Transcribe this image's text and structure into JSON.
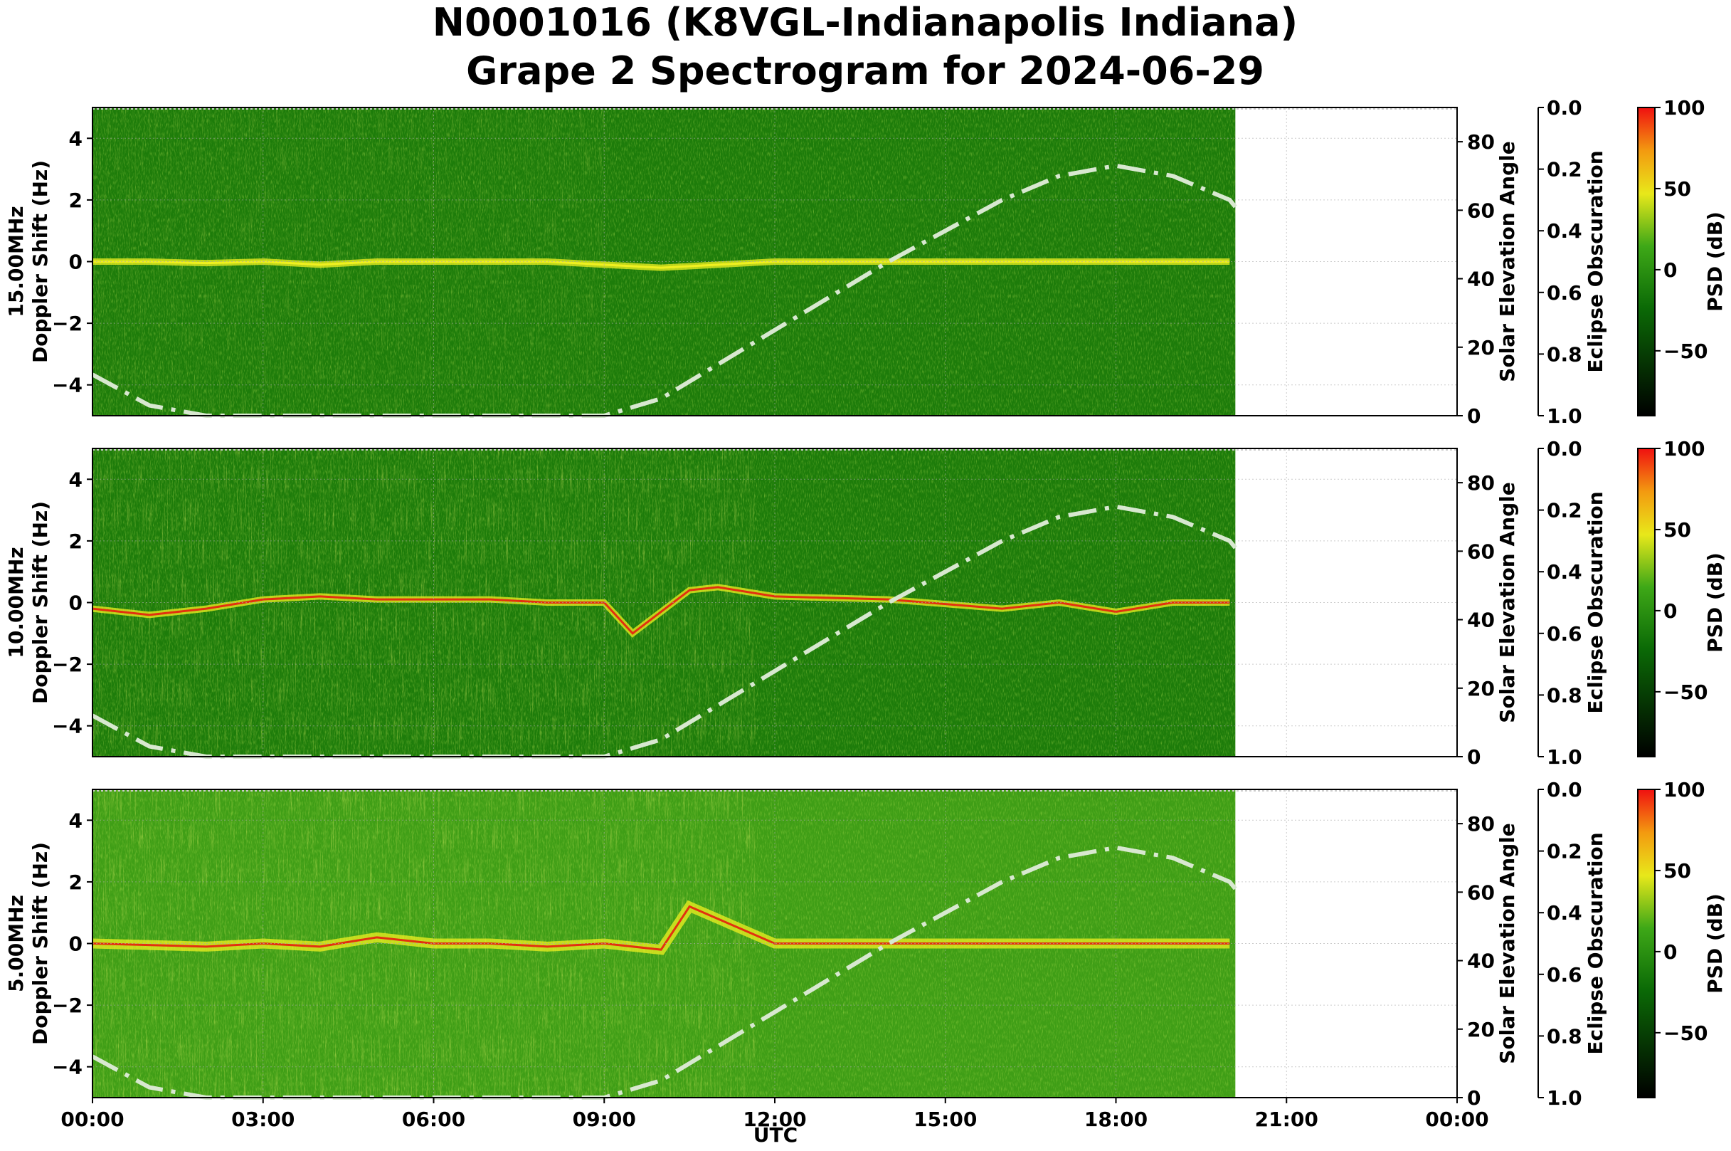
{
  "figure": {
    "title_line1": "N0001016 (K8VGL-Indianapolis Indiana)",
    "title_line2": "Grape 2 Spectrogram for 2024-06-29",
    "xlabel": "UTC"
  },
  "chart_data": [
    {
      "type": "heatmap",
      "band": "15.00MHz",
      "ylabel_line1": "15.00MHz",
      "ylabel_line2": "Doppler Shift (Hz)",
      "x_range_hours": [
        0,
        24
      ],
      "data_extent_hours": [
        0,
        20.1
      ],
      "ylim": [
        -5,
        5
      ],
      "yticks": [
        "−4",
        "−2",
        "0",
        "2",
        "4"
      ],
      "carrier_trace": [
        [
          0,
          0
        ],
        [
          1,
          0
        ],
        [
          2,
          -0.05
        ],
        [
          3,
          0
        ],
        [
          4,
          -0.1
        ],
        [
          5,
          0
        ],
        [
          6,
          0
        ],
        [
          7,
          0
        ],
        [
          8,
          0
        ],
        [
          9,
          -0.1
        ],
        [
          10,
          -0.2
        ],
        [
          11,
          -0.1
        ],
        [
          12,
          0
        ],
        [
          14,
          0
        ],
        [
          16,
          0
        ],
        [
          18,
          0
        ],
        [
          20,
          0
        ]
      ],
      "solar_elevation": {
        "label": "Solar Elevation Angle",
        "ylim": [
          0,
          90
        ],
        "yticks": [
          "0",
          "20",
          "40",
          "60",
          "80"
        ]
      },
      "eclipse": {
        "label": "Eclipse Obscuration",
        "ylim": [
          1.0,
          0.0
        ],
        "yticks": [
          "0.0",
          "0.2",
          "0.4",
          "0.6",
          "0.8",
          "1.0"
        ]
      },
      "colorbar": {
        "label": "PSD (dB)",
        "range": [
          -90,
          100
        ],
        "ticks": [
          "100",
          "50",
          "0",
          "−50"
        ]
      }
    },
    {
      "type": "heatmap",
      "band": "10.00MHz",
      "ylabel_line1": "10.00MHz",
      "ylabel_line2": "Doppler Shift (Hz)",
      "x_range_hours": [
        0,
        24
      ],
      "data_extent_hours": [
        0,
        20.1
      ],
      "ylim": [
        -5,
        5
      ],
      "yticks": [
        "−4",
        "−2",
        "0",
        "2",
        "4"
      ],
      "carrier_trace": [
        [
          0,
          -0.2
        ],
        [
          1,
          -0.4
        ],
        [
          2,
          -0.2
        ],
        [
          3,
          0.1
        ],
        [
          4,
          0.2
        ],
        [
          5,
          0.1
        ],
        [
          6,
          0.1
        ],
        [
          7,
          0.1
        ],
        [
          8,
          0
        ],
        [
          9,
          0
        ],
        [
          9.5,
          -1.0
        ],
        [
          10,
          -0.3
        ],
        [
          10.5,
          0.4
        ],
        [
          11,
          0.5
        ],
        [
          12,
          0.2
        ],
        [
          14,
          0.1
        ],
        [
          16,
          -0.2
        ],
        [
          17,
          0
        ],
        [
          18,
          -0.3
        ],
        [
          19,
          0
        ],
        [
          20,
          0
        ]
      ],
      "solar_elevation": {
        "label": "Solar Elevation Angle",
        "ylim": [
          0,
          90
        ],
        "yticks": [
          "0",
          "20",
          "40",
          "60",
          "80"
        ]
      },
      "eclipse": {
        "label": "Eclipse Obscuration",
        "ylim": [
          1.0,
          0.0
        ],
        "yticks": [
          "0.0",
          "0.2",
          "0.4",
          "0.6",
          "0.8",
          "1.0"
        ]
      },
      "colorbar": {
        "label": "PSD (dB)",
        "range": [
          -90,
          100
        ],
        "ticks": [
          "100",
          "50",
          "0",
          "−50"
        ]
      }
    },
    {
      "type": "heatmap",
      "band": "5.00MHz",
      "ylabel_line1": "5.00MHz",
      "ylabel_line2": "Doppler Shift (Hz)",
      "x_range_hours": [
        0,
        24
      ],
      "data_extent_hours": [
        0,
        20.1
      ],
      "ylim": [
        -5,
        5
      ],
      "yticks": [
        "−4",
        "−2",
        "0",
        "2",
        "4"
      ],
      "carrier_trace": [
        [
          0,
          0
        ],
        [
          2,
          -0.1
        ],
        [
          3,
          0
        ],
        [
          4,
          -0.1
        ],
        [
          5,
          0.2
        ],
        [
          6,
          0
        ],
        [
          7,
          0
        ],
        [
          8,
          -0.1
        ],
        [
          9,
          0
        ],
        [
          10,
          -0.2
        ],
        [
          10.5,
          1.2
        ],
        [
          11,
          0.8
        ],
        [
          12,
          0
        ],
        [
          14,
          0
        ],
        [
          16,
          0
        ],
        [
          18,
          0
        ],
        [
          20,
          0
        ]
      ],
      "solar_elevation": {
        "label": "Solar Elevation Angle",
        "ylim": [
          0,
          90
        ],
        "yticks": [
          "0",
          "20",
          "40",
          "60",
          "80"
        ]
      },
      "eclipse": {
        "label": "Eclipse Obscuration",
        "ylim": [
          1.0,
          0.0
        ],
        "yticks": [
          "0.0",
          "0.2",
          "0.4",
          "0.6",
          "0.8",
          "1.0"
        ]
      },
      "colorbar": {
        "label": "PSD (dB)",
        "range": [
          -90,
          100
        ],
        "ticks": [
          "100",
          "50",
          "0",
          "−50"
        ]
      }
    }
  ],
  "shared_x": {
    "xlim_hours": [
      0,
      24
    ],
    "xticks": [
      "00:00",
      "03:00",
      "06:00",
      "09:00",
      "12:00",
      "15:00",
      "18:00",
      "21:00",
      "00:00"
    ]
  },
  "solar_elevation_curve": [
    [
      0,
      12
    ],
    [
      1,
      3
    ],
    [
      2,
      0
    ],
    [
      9,
      0
    ],
    [
      10,
      5
    ],
    [
      11,
      15
    ],
    [
      12,
      25
    ],
    [
      13,
      35
    ],
    [
      14,
      45
    ],
    [
      15,
      54
    ],
    [
      16,
      63
    ],
    [
      17,
      70
    ],
    [
      18,
      73
    ],
    [
      19,
      70
    ],
    [
      20,
      63
    ],
    [
      20.1,
      61
    ]
  ],
  "colors": {
    "background_green": "#1d7c0a",
    "mid_green": "#3f9e16",
    "yellow": "#f0f020",
    "red": "#e23010",
    "solar_curve": "#d8e8d0"
  }
}
